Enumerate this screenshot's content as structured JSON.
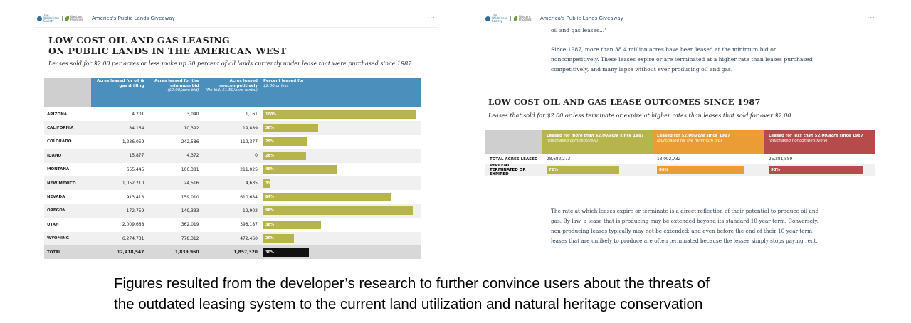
{
  "app": {
    "title": "America's Public Lands Giveaway",
    "menu_icon": "ellipsis-icon",
    "logo_org1": "The Wilderness Society",
    "logo_org2": "Western Priorities"
  },
  "left_chart": {
    "title_line1": "LOW COST OIL AND GAS LEASING",
    "title_line2": "ON PUBLIC LANDS IN THE AMERICAN WEST",
    "subtitle": "Leases sold for $2.00 per acres or less make up 30 percent of all lands currently under lease that were purchased since 1987",
    "headers": {
      "col1": "Acres leased for oil & gas drilling",
      "col2": "Acres leased for the minimum bid",
      "col2_note": "($2.00/acre bid)",
      "col3": "Acres leased noncompetitively",
      "col3_note": "(No bid, $1.50/acre rental)",
      "col4": "Percent leased for",
      "col4_note": "$2.00 or less"
    },
    "bar_color": "#b6b54c",
    "total_bar_color": "#111111",
    "header_color": "#4b8fbd"
  },
  "chart_data": [
    {
      "type": "table",
      "title": "LOW COST OIL AND GAS LEASING ON PUBLIC LANDS IN THE AMERICAN WEST",
      "rows": [
        {
          "state": "ARIZONA",
          "drilling": "4,201",
          "minimum": "3,040",
          "noncomp": "1,161",
          "percent": 100,
          "label": "100%"
        },
        {
          "state": "CALIFORNIA",
          "drilling": "84,164",
          "minimum": "10,392",
          "noncomp": "19,889",
          "percent": 36,
          "label": "36%"
        },
        {
          "state": "COLORADO",
          "drilling": "1,236,059",
          "minimum": "242,586",
          "noncomp": "119,377",
          "percent": 29,
          "label": "29%"
        },
        {
          "state": "IDAHO",
          "drilling": "15,877",
          "minimum": "4,372",
          "noncomp": "0",
          "percent": 28,
          "label": "28%"
        },
        {
          "state": "MONTANA",
          "drilling": "655,445",
          "minimum": "106,381",
          "noncomp": "211,025",
          "percent": 48,
          "label": "48%"
        },
        {
          "state": "NEW MEXICO",
          "drilling": "1,052,210",
          "minimum": "24,516",
          "noncomp": "4,635",
          "percent": 3,
          "label": "3%"
        },
        {
          "state": "NEVADA",
          "drilling": "913,413",
          "minimum": "159,010",
          "noncomp": "610,684",
          "percent": 84,
          "label": "84%"
        },
        {
          "state": "OREGON",
          "drilling": "172,759",
          "minimum": "149,333",
          "noncomp": "19,902",
          "percent": 98,
          "label": "98%"
        },
        {
          "state": "UTAH",
          "drilling": "2,009,688",
          "minimum": "362,019",
          "noncomp": "398,187",
          "percent": 38,
          "label": "38%"
        },
        {
          "state": "WYOMING",
          "drilling": "6,274,731",
          "minimum": "778,312",
          "noncomp": "472,460",
          "percent": 20,
          "label": "20%"
        }
      ],
      "total": {
        "state": "TOTAL",
        "drilling": "12,418,547",
        "minimum": "1,839,960",
        "noncomp": "1,857,320",
        "percent": 30,
        "label": "30%"
      }
    },
    {
      "type": "bar",
      "title": "LOW COST OIL AND GAS LEASE OUTCOMES SINCE 1987",
      "categories": [
        "Leased for more than $2.00/acre since 1987",
        "Leased for $2.00/acre since 1987",
        "Leased for less than $2.00/acre since 1987"
      ],
      "total_acres": [
        "28,682,273",
        "13,092,732",
        "25,281,589"
      ],
      "percent_terminated": [
        71,
        86,
        93
      ],
      "percent_labels": [
        "71%",
        "86%",
        "93%"
      ],
      "colors": [
        "#b6b54c",
        "#ec9c35",
        "#b64b4b"
      ]
    }
  ],
  "right_panel": {
    "quote_tail": "oil and gas leases...\"",
    "para1_a": "Since 1987, more than 38.4 million acres have been leased at the minimum bid or noncompetitively. These leases expire or are terminated at a higher rate than leases purchased competitively, and many lapse ",
    "para1_link": "without ever producing oil and gas",
    "para1_b": ".",
    "title": "LOW COST OIL AND GAS LEASE OUTCOMES SINCE 1987",
    "subtitle": "Leases that sold for $2.00 or less terminate or expire at higher rates than leases that sold for over $2.00",
    "headers": [
      {
        "a": "Leased for ",
        "em": "more than $2.00/acre",
        "b": " since 1987",
        "note": "(purchased competitively)"
      },
      {
        "a": "Leased for ",
        "em": "$2.00/acre",
        "b": " since 1987",
        "note": "(purchased for the minimum bid)"
      },
      {
        "a": "Leased for ",
        "em": "less than $2.00/acre",
        "b": " since 1987",
        "note": "(purchased noncompetitively)"
      }
    ],
    "row1_label": "TOTAL ACRES LEASED",
    "row2_label": "PERCENT TERMINATED OR EXPIRED",
    "para2": "The rate at which leases expire or terminate is a direct reflection of their potential to produce oil and gas. By law, a lease that is producing may be extended beyond its standard 10-year term. Conversely, non-producing leases typically may not be extended; and even before the end of their 10-year term, leases that are unlikely to produce are often terminated because the lessee simply stops paying rent."
  },
  "caption": {
    "line1": "Figures resulted from the developer’s research to further  convince users about the threats of",
    "line2": "the outdated  leasing system to the current land utilization and natural heritage conservation"
  }
}
